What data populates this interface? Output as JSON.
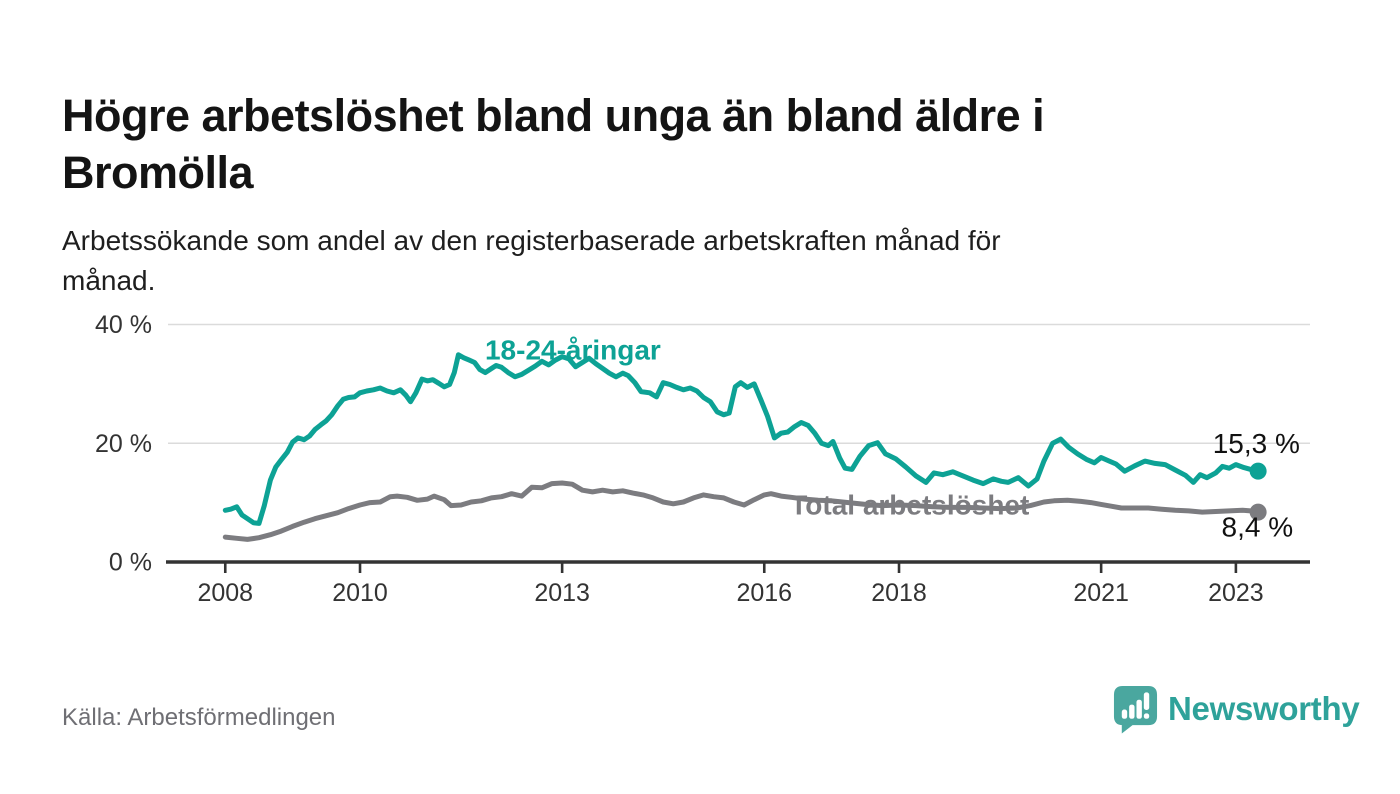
{
  "chart_data": {
    "type": "line",
    "title": "Högre arbetslöshet bland unga än bland äldre i\nBromölla",
    "subtitle": "Arbetssökande som andel av den registerbaserade arbetskraften månad för\nmånad.",
    "grid": "horizontal",
    "legend_position": "inline-labels",
    "x_axis": {
      "range": [
        2007.15,
        2024.1
      ],
      "ticks": [
        2008,
        2010,
        2013,
        2016,
        2018,
        2021,
        2023
      ],
      "tick_labels": [
        "2008",
        "2010",
        "2013",
        "2016",
        "2018",
        "2021",
        "2023"
      ]
    },
    "y_axis": {
      "range": [
        0,
        40
      ],
      "ticks": [
        0,
        20,
        40
      ],
      "tick_labels": [
        "0 %",
        "20 %",
        "40 %"
      ],
      "gridline_ticks": [
        20,
        40
      ]
    },
    "series": [
      {
        "id": "total-arbetsloshet",
        "name": "Total arbetslöshet",
        "color": "#7c7c80",
        "end_value": 8.4,
        "end_label": "8,4 %",
        "points": [
          [
            2008.0,
            4.2
          ],
          [
            2008.17,
            4.0
          ],
          [
            2008.33,
            3.8
          ],
          [
            2008.5,
            4.1
          ],
          [
            2008.67,
            4.6
          ],
          [
            2008.83,
            5.2
          ],
          [
            2009.0,
            6.0
          ],
          [
            2009.17,
            6.7
          ],
          [
            2009.33,
            7.3
          ],
          [
            2009.5,
            7.8
          ],
          [
            2009.67,
            8.3
          ],
          [
            2009.83,
            9.0
          ],
          [
            2010.0,
            9.6
          ],
          [
            2010.15,
            10.0
          ],
          [
            2010.3,
            10.1
          ],
          [
            2010.45,
            11.0
          ],
          [
            2010.55,
            11.1
          ],
          [
            2010.7,
            10.9
          ],
          [
            2010.85,
            10.4
          ],
          [
            2011.0,
            10.6
          ],
          [
            2011.1,
            11.1
          ],
          [
            2011.25,
            10.5
          ],
          [
            2011.35,
            9.5
          ],
          [
            2011.5,
            9.6
          ],
          [
            2011.65,
            10.1
          ],
          [
            2011.8,
            10.3
          ],
          [
            2011.95,
            10.8
          ],
          [
            2012.1,
            11.0
          ],
          [
            2012.25,
            11.5
          ],
          [
            2012.4,
            11.1
          ],
          [
            2012.55,
            12.6
          ],
          [
            2012.7,
            12.5
          ],
          [
            2012.85,
            13.2
          ],
          [
            2013.0,
            13.3
          ],
          [
            2013.15,
            13.1
          ],
          [
            2013.3,
            12.1
          ],
          [
            2013.45,
            11.8
          ],
          [
            2013.6,
            12.1
          ],
          [
            2013.75,
            11.8
          ],
          [
            2013.9,
            12.0
          ],
          [
            2014.05,
            11.6
          ],
          [
            2014.2,
            11.3
          ],
          [
            2014.35,
            10.8
          ],
          [
            2014.5,
            10.1
          ],
          [
            2014.65,
            9.8
          ],
          [
            2014.8,
            10.1
          ],
          [
            2014.95,
            10.8
          ],
          [
            2015.1,
            11.3
          ],
          [
            2015.25,
            11.0
          ],
          [
            2015.4,
            10.8
          ],
          [
            2015.55,
            10.1
          ],
          [
            2015.7,
            9.6
          ],
          [
            2015.85,
            10.5
          ],
          [
            2016.0,
            11.3
          ],
          [
            2016.1,
            11.5
          ],
          [
            2016.25,
            11.1
          ],
          [
            2016.4,
            10.9
          ],
          [
            2016.6,
            10.6
          ],
          [
            2016.8,
            10.4
          ],
          [
            2017.0,
            10.3
          ],
          [
            2017.25,
            10.0
          ],
          [
            2017.5,
            9.7
          ],
          [
            2017.75,
            9.5
          ],
          [
            2018.0,
            9.6
          ],
          [
            2018.25,
            9.5
          ],
          [
            2018.5,
            9.3
          ],
          [
            2018.75,
            9.2
          ],
          [
            2019.0,
            9.2
          ],
          [
            2019.25,
            9.1
          ],
          [
            2019.5,
            9.0
          ],
          [
            2019.75,
            9.1
          ],
          [
            2019.95,
            9.5
          ],
          [
            2020.15,
            10.1
          ],
          [
            2020.3,
            10.3
          ],
          [
            2020.5,
            10.4
          ],
          [
            2020.7,
            10.2
          ],
          [
            2020.85,
            10.0
          ],
          [
            2021.0,
            9.7
          ],
          [
            2021.15,
            9.4
          ],
          [
            2021.3,
            9.1
          ],
          [
            2021.5,
            9.1
          ],
          [
            2021.7,
            9.1
          ],
          [
            2021.9,
            8.9
          ],
          [
            2022.1,
            8.7
          ],
          [
            2022.3,
            8.6
          ],
          [
            2022.5,
            8.4
          ],
          [
            2022.7,
            8.5
          ],
          [
            2022.9,
            8.6
          ],
          [
            2023.1,
            8.7
          ],
          [
            2023.22,
            8.6
          ],
          [
            2023.33,
            8.4
          ]
        ]
      },
      {
        "id": "18-24-aringar",
        "name": "18-24-åringar",
        "color": "#0da295",
        "end_value": 15.3,
        "end_label": "15,3 %",
        "points": [
          [
            2008.0,
            8.7
          ],
          [
            2008.08,
            8.9
          ],
          [
            2008.17,
            9.3
          ],
          [
            2008.25,
            7.9
          ],
          [
            2008.33,
            7.3
          ],
          [
            2008.42,
            6.6
          ],
          [
            2008.5,
            6.5
          ],
          [
            2008.58,
            9.5
          ],
          [
            2008.67,
            13.8
          ],
          [
            2008.75,
            16.0
          ],
          [
            2008.83,
            17.2
          ],
          [
            2008.92,
            18.5
          ],
          [
            2009.0,
            20.2
          ],
          [
            2009.08,
            20.9
          ],
          [
            2009.17,
            20.6
          ],
          [
            2009.25,
            21.2
          ],
          [
            2009.33,
            22.3
          ],
          [
            2009.42,
            23.1
          ],
          [
            2009.5,
            23.8
          ],
          [
            2009.58,
            24.8
          ],
          [
            2009.67,
            26.3
          ],
          [
            2009.75,
            27.4
          ],
          [
            2009.83,
            27.7
          ],
          [
            2009.92,
            27.8
          ],
          [
            2010.0,
            28.5
          ],
          [
            2010.1,
            28.8
          ],
          [
            2010.2,
            29.0
          ],
          [
            2010.3,
            29.3
          ],
          [
            2010.4,
            28.8
          ],
          [
            2010.5,
            28.5
          ],
          [
            2010.6,
            29.0
          ],
          [
            2010.68,
            28.1
          ],
          [
            2010.75,
            27.0
          ],
          [
            2010.83,
            28.5
          ],
          [
            2010.92,
            30.8
          ],
          [
            2011.0,
            30.5
          ],
          [
            2011.08,
            30.7
          ],
          [
            2011.17,
            30.1
          ],
          [
            2011.25,
            29.5
          ],
          [
            2011.33,
            29.9
          ],
          [
            2011.4,
            31.9
          ],
          [
            2011.46,
            34.9
          ],
          [
            2011.54,
            34.4
          ],
          [
            2011.62,
            34.0
          ],
          [
            2011.7,
            33.6
          ],
          [
            2011.78,
            32.4
          ],
          [
            2011.86,
            31.9
          ],
          [
            2011.94,
            32.5
          ],
          [
            2012.02,
            33.1
          ],
          [
            2012.1,
            32.8
          ],
          [
            2012.2,
            31.9
          ],
          [
            2012.3,
            31.2
          ],
          [
            2012.4,
            31.6
          ],
          [
            2012.5,
            32.3
          ],
          [
            2012.6,
            33.0
          ],
          [
            2012.7,
            33.8
          ],
          [
            2012.8,
            33.2
          ],
          [
            2012.9,
            34.0
          ],
          [
            2013.0,
            34.6
          ],
          [
            2013.1,
            34.2
          ],
          [
            2013.2,
            32.9
          ],
          [
            2013.3,
            33.6
          ],
          [
            2013.4,
            34.3
          ],
          [
            2013.5,
            33.4
          ],
          [
            2013.6,
            32.6
          ],
          [
            2013.7,
            31.8
          ],
          [
            2013.8,
            31.2
          ],
          [
            2013.9,
            31.8
          ],
          [
            2013.98,
            31.4
          ],
          [
            2014.08,
            30.2
          ],
          [
            2014.17,
            28.7
          ],
          [
            2014.3,
            28.5
          ],
          [
            2014.4,
            27.8
          ],
          [
            2014.5,
            30.2
          ],
          [
            2014.6,
            29.9
          ],
          [
            2014.7,
            29.4
          ],
          [
            2014.8,
            29.0
          ],
          [
            2014.9,
            29.3
          ],
          [
            2015.0,
            28.8
          ],
          [
            2015.1,
            27.7
          ],
          [
            2015.2,
            27.0
          ],
          [
            2015.3,
            25.3
          ],
          [
            2015.4,
            24.8
          ],
          [
            2015.48,
            25.1
          ],
          [
            2015.57,
            29.5
          ],
          [
            2015.65,
            30.2
          ],
          [
            2015.75,
            29.4
          ],
          [
            2015.85,
            30.0
          ],
          [
            2015.95,
            27.3
          ],
          [
            2016.05,
            24.5
          ],
          [
            2016.15,
            20.9
          ],
          [
            2016.25,
            21.7
          ],
          [
            2016.35,
            21.9
          ],
          [
            2016.45,
            22.8
          ],
          [
            2016.55,
            23.5
          ],
          [
            2016.65,
            23.0
          ],
          [
            2016.75,
            21.7
          ],
          [
            2016.85,
            20.0
          ],
          [
            2016.95,
            19.6
          ],
          [
            2017.02,
            20.3
          ],
          [
            2017.12,
            17.5
          ],
          [
            2017.2,
            15.8
          ],
          [
            2017.3,
            15.6
          ],
          [
            2017.42,
            17.8
          ],
          [
            2017.55,
            19.6
          ],
          [
            2017.68,
            20.1
          ],
          [
            2017.8,
            18.2
          ],
          [
            2017.95,
            17.4
          ],
          [
            2018.1,
            16.0
          ],
          [
            2018.25,
            14.5
          ],
          [
            2018.4,
            13.4
          ],
          [
            2018.52,
            15.0
          ],
          [
            2018.65,
            14.7
          ],
          [
            2018.8,
            15.2
          ],
          [
            2018.95,
            14.5
          ],
          [
            2019.1,
            13.8
          ],
          [
            2019.25,
            13.2
          ],
          [
            2019.4,
            14.0
          ],
          [
            2019.52,
            13.6
          ],
          [
            2019.62,
            13.4
          ],
          [
            2019.77,
            14.2
          ],
          [
            2019.92,
            12.8
          ],
          [
            2020.05,
            14.0
          ],
          [
            2020.15,
            17.0
          ],
          [
            2020.28,
            20.0
          ],
          [
            2020.4,
            20.7
          ],
          [
            2020.52,
            19.3
          ],
          [
            2020.65,
            18.2
          ],
          [
            2020.78,
            17.3
          ],
          [
            2020.9,
            16.7
          ],
          [
            2021.0,
            17.6
          ],
          [
            2021.1,
            17.1
          ],
          [
            2021.22,
            16.5
          ],
          [
            2021.35,
            15.3
          ],
          [
            2021.5,
            16.2
          ],
          [
            2021.65,
            17.0
          ],
          [
            2021.8,
            16.6
          ],
          [
            2021.95,
            16.4
          ],
          [
            2022.1,
            15.5
          ],
          [
            2022.25,
            14.6
          ],
          [
            2022.37,
            13.4
          ],
          [
            2022.47,
            14.7
          ],
          [
            2022.57,
            14.2
          ],
          [
            2022.7,
            15.0
          ],
          [
            2022.8,
            16.1
          ],
          [
            2022.9,
            15.8
          ],
          [
            2023.0,
            16.4
          ],
          [
            2023.12,
            15.9
          ],
          [
            2023.22,
            15.6
          ],
          [
            2023.33,
            15.3
          ]
        ]
      }
    ],
    "annotations": {
      "series_labels": [
        {
          "series": "18-24-aringar",
          "text": "18-24-åringar",
          "x": 2013.16,
          "y": 35.7,
          "anchor": "middle",
          "color": "#0da295"
        },
        {
          "series": "total-arbetsloshet",
          "text": "Total arbetslöshet",
          "x": 2018.16,
          "y": 9.6,
          "anchor": "middle",
          "color": "#7c7c80"
        }
      ],
      "value_labels": [
        {
          "series": "18-24-aringar",
          "text": "15,3 %",
          "x": 2023.95,
          "y": 20.0,
          "anchor": "end"
        },
        {
          "series": "total-arbetsloshet",
          "text": "8,4 %",
          "x": 2023.85,
          "y": 5.9,
          "anchor": "end"
        }
      ]
    },
    "colors": {
      "young_line": "#0da295",
      "total_line": "#7c7c80",
      "gridline": "#dbdbdb",
      "axis": "#333333",
      "tick_text": "#333333",
      "value_text": "#111111"
    }
  },
  "footer": {
    "source": "Källa: Arbetsförmedlingen",
    "brand": "Newsworthy",
    "brand_color": "#2ea29a",
    "brand_icon_color": "#4aa79f"
  }
}
